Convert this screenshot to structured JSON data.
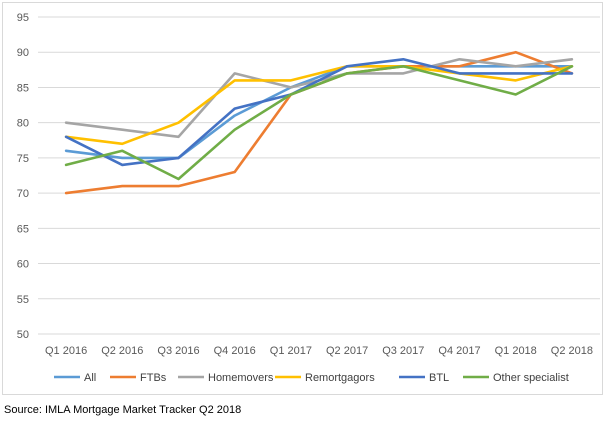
{
  "chart_data": {
    "type": "line",
    "categories": [
      "Q1 2016",
      "Q2 2016",
      "Q3 2016",
      "Q4 2016",
      "Q1 2017",
      "Q2 2017",
      "Q3 2017",
      "Q4 2017",
      "Q1 2018",
      "Q2 2018"
    ],
    "ylim": [
      50,
      95
    ],
    "yticks": [
      50,
      55,
      60,
      65,
      70,
      75,
      80,
      85,
      90,
      95
    ],
    "grid": "horizontal",
    "legend_position": "bottom",
    "series": [
      {
        "name": "All",
        "color": "#5b9bd5",
        "values": [
          76,
          75,
          75,
          81,
          85,
          88,
          88,
          88,
          88,
          88
        ]
      },
      {
        "name": "FTBs",
        "color": "#ed7d31",
        "values": [
          70,
          71,
          71,
          73,
          84,
          87,
          88,
          88,
          90,
          87
        ]
      },
      {
        "name": "Homemovers",
        "color": "#a5a5a5",
        "values": [
          80,
          79,
          78,
          87,
          85,
          87,
          87,
          89,
          88,
          89
        ]
      },
      {
        "name": "Remortgagors",
        "color": "#ffc000",
        "values": [
          78,
          77,
          80,
          86,
          86,
          88,
          88,
          87,
          86,
          88
        ]
      },
      {
        "name": "BTL",
        "color": "#4472c4",
        "values": [
          78,
          74,
          75,
          82,
          84,
          88,
          89,
          87,
          87,
          87
        ]
      },
      {
        "name": "Other specialist",
        "color": "#70ad47",
        "values": [
          74,
          76,
          72,
          79,
          84,
          87,
          88,
          86,
          84,
          88
        ]
      }
    ]
  },
  "source_text": "Source: IMLA Mortgage Market Tracker Q2 2018"
}
